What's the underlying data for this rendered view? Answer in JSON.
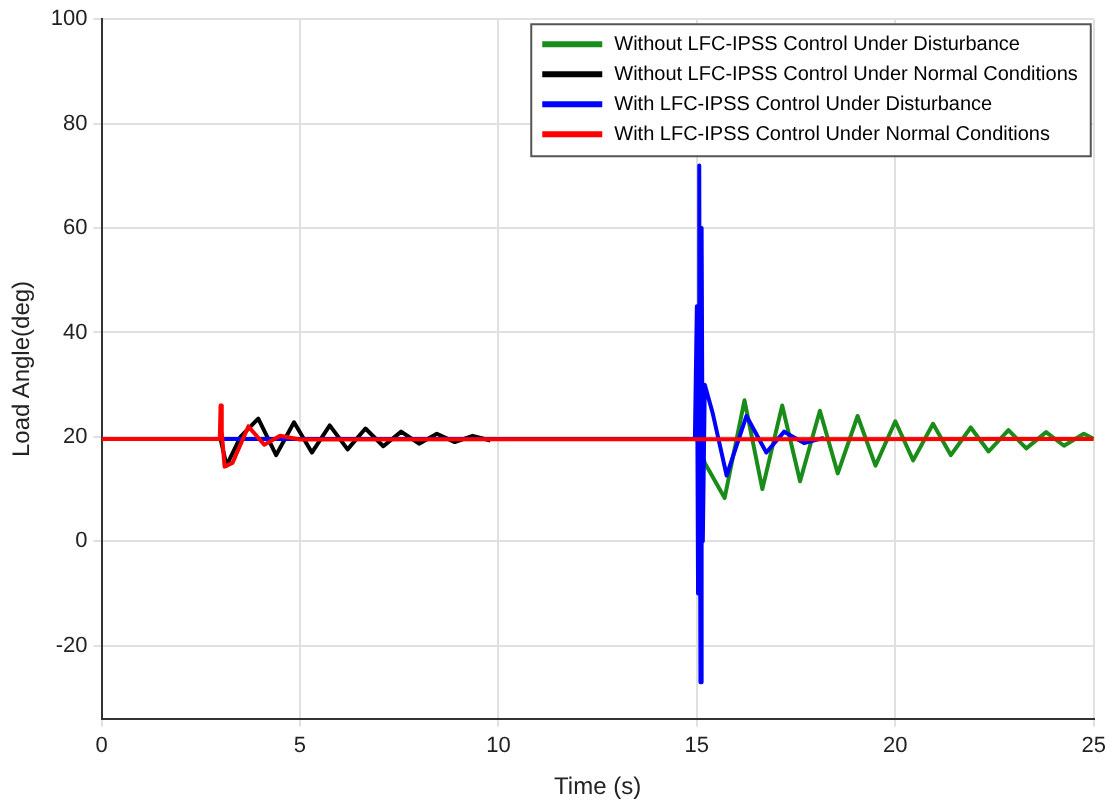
{
  "chart_data": {
    "type": "line",
    "xlabel": "Time (s)",
    "ylabel": "Load Angle(deg)",
    "xlim": [
      0,
      25
    ],
    "ylim": [
      -34,
      100
    ],
    "xticks": [
      0,
      5,
      10,
      15,
      20,
      25
    ],
    "yticks": [
      -20,
      0,
      20,
      40,
      60,
      80,
      100
    ],
    "grid": true,
    "legend": "top right",
    "marker": "none",
    "line_style": "solid",
    "series": [
      {
        "name": "Without LFC-IPSS Control Under Disturbance",
        "color": "#1a8c1a",
        "x": [
          0,
          15,
          15.2,
          15.7,
          16.2,
          16.65,
          17.15,
          17.6,
          18.1,
          18.55,
          19.05,
          19.5,
          20,
          20.45,
          20.95,
          21.4,
          21.9,
          22.35,
          22.85,
          23.3,
          23.8,
          24.25,
          24.75,
          25
        ],
        "values": [
          19.6,
          19.6,
          15,
          8.3,
          27,
          10,
          26,
          11.5,
          25,
          13,
          24,
          14.5,
          23,
          15.5,
          22.5,
          16.5,
          21.8,
          17.2,
          21.3,
          17.8,
          20.9,
          18.3,
          20.6,
          19.6
        ]
      },
      {
        "name": "Without LFC-IPSS Control Under Normal Conditions",
        "color": "#000000",
        "x": [
          0,
          3,
          3.15,
          3.5,
          3.95,
          4.4,
          4.85,
          5.3,
          5.75,
          6.2,
          6.65,
          7.1,
          7.55,
          8,
          8.45,
          8.9,
          9.35,
          9.8
        ],
        "values": [
          19.6,
          19.6,
          14.5,
          20,
          23.5,
          16.5,
          22.8,
          17,
          22.2,
          17.6,
          21.6,
          18.2,
          21,
          18.7,
          20.6,
          19,
          20.2,
          19.3
        ]
      },
      {
        "name": "With LFC-IPSS Control Under Disturbance",
        "color": "#0000ff",
        "x": [
          0,
          14.95,
          15,
          15.03,
          15.06,
          15.09,
          15.12,
          15.15,
          15.2,
          15.4,
          15.75,
          16.25,
          16.75,
          17.2,
          17.7,
          18.2
        ],
        "values": [
          19.6,
          19.6,
          45,
          -10,
          72,
          -27,
          60,
          0,
          30,
          24.5,
          12.6,
          24,
          17,
          21,
          18.8,
          19.8
        ]
      },
      {
        "name": "With LFC-IPSS Control Under Normal Conditions",
        "color": "#ff0000",
        "x": [
          0,
          2.98,
          3,
          3.03,
          3.1,
          3.3,
          3.7,
          4.1,
          4.5,
          5,
          25
        ],
        "values": [
          19.6,
          19.6,
          26,
          21,
          14.3,
          15,
          22,
          18.5,
          20.2,
          19.5,
          19.6
        ]
      }
    ]
  }
}
